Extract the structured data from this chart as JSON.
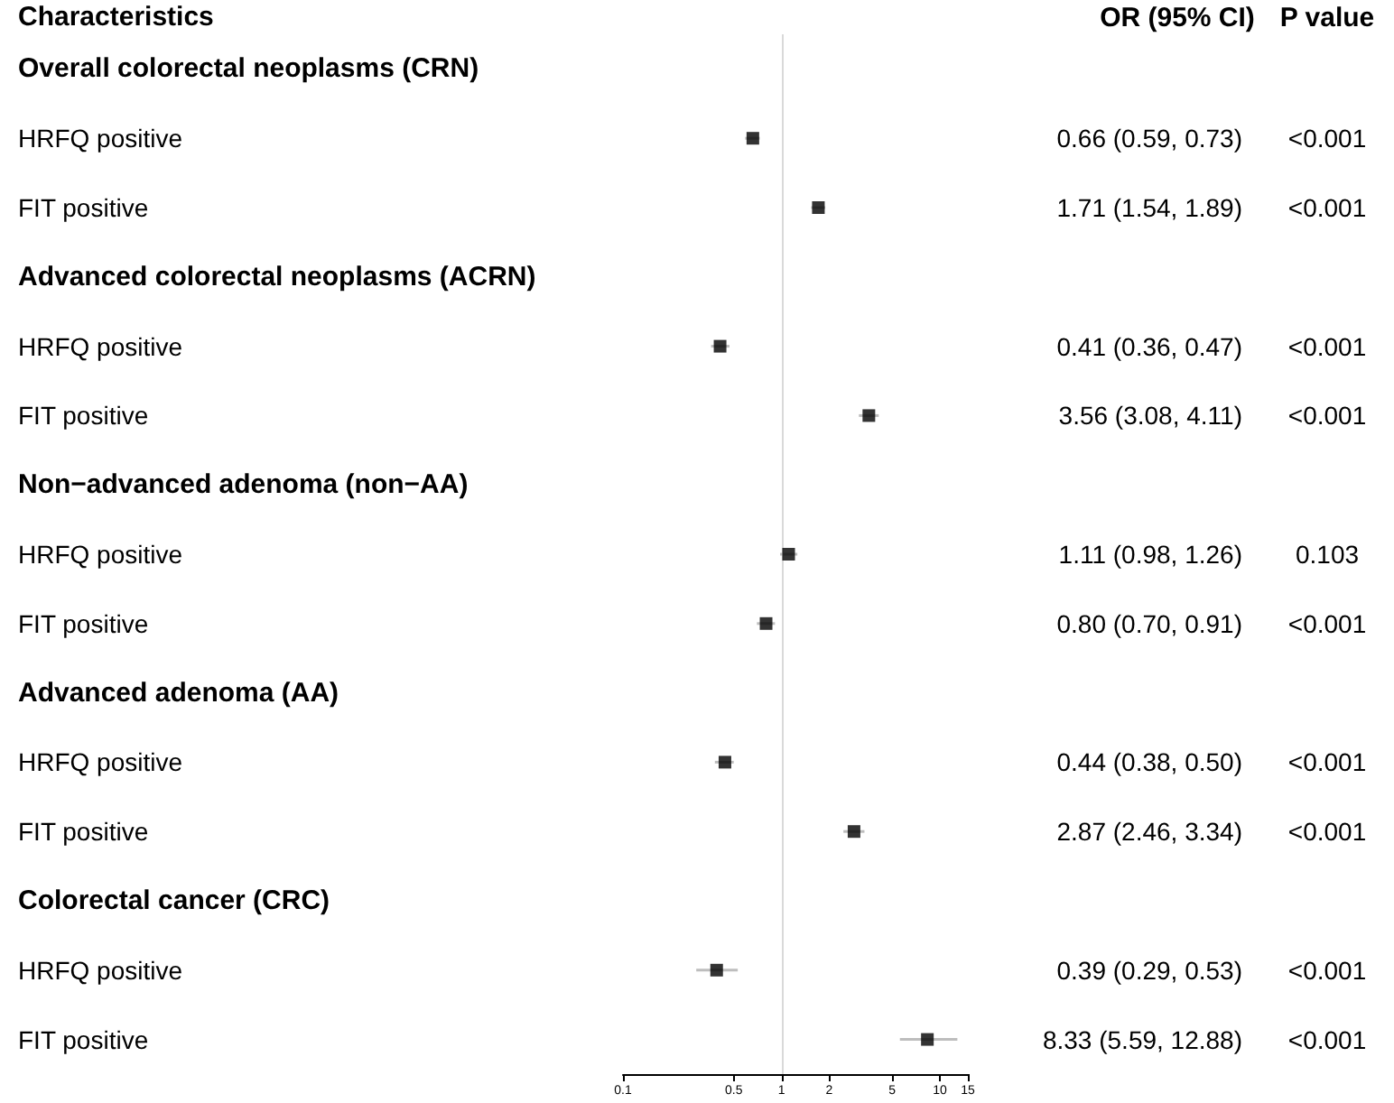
{
  "chart_data": {
    "type": "scatter",
    "orientation": "horizontal",
    "ylabel": "Characteristics",
    "categories": [
      "Overall colorectal neoplasms (CRN)",
      "HRFQ positive",
      "FIT positive",
      "Advanced colorectal neoplasms (ACRN)",
      "HRFQ positive",
      "FIT positive",
      "Non−advanced adenoma (non−AA)",
      "HRFQ positive",
      "FIT positive",
      "Advanced adenoma (AA)",
      "HRFQ positive",
      "FIT positive",
      "Colorectal cancer (CRC)",
      "HRFQ positive",
      "FIT positive"
    ],
    "values": [
      null,
      0.66,
      1.71,
      null,
      0.41,
      3.56,
      null,
      1.11,
      0.8,
      null,
      0.44,
      2.87,
      null,
      0.39,
      8.33
    ],
    "errors": [
      null,
      [
        0.59,
        0.73
      ],
      [
        1.54,
        1.89
      ],
      null,
      [
        0.36,
        0.47
      ],
      [
        3.08,
        4.11
      ],
      null,
      [
        0.98,
        1.26
      ],
      [
        0.7,
        0.91
      ],
      null,
      [
        0.38,
        0.5
      ],
      [
        2.46,
        3.34
      ],
      null,
      [
        0.29,
        0.53
      ],
      [
        5.59,
        12.88
      ]
    ],
    "value_labels": [
      null,
      "0.66 (0.59, 0.73)",
      "1.71 (1.54, 1.89)",
      null,
      "0.41 (0.36, 0.47)",
      "3.56 (3.08, 4.11)",
      null,
      "1.11 (0.98, 1.26)",
      "0.80 (0.70, 0.91)",
      null,
      "0.44 (0.38, 0.50)",
      "2.87 (2.46, 3.34)",
      null,
      "0.39 (0.29, 0.53)",
      "8.33 (5.59, 12.88)"
    ],
    "annotations": [
      "OR (95% CI)",
      "P value",
      "<0.001",
      "<0.001",
      "<0.001",
      "<0.001",
      "0.103",
      "<0.001",
      "<0.001",
      "<0.001",
      "<0.001",
      "<0.001"
    ],
    "color": "#000000",
    "marker": "square",
    "log": "x",
    "xlim": [
      0.1,
      15
    ],
    "xticks": [
      0.1,
      0.5,
      1,
      2,
      5,
      10,
      15
    ],
    "ref_lines": [
      {
        "axis": "x",
        "value": 1,
        "color": "#d9d9d9"
      }
    ]
  }
}
